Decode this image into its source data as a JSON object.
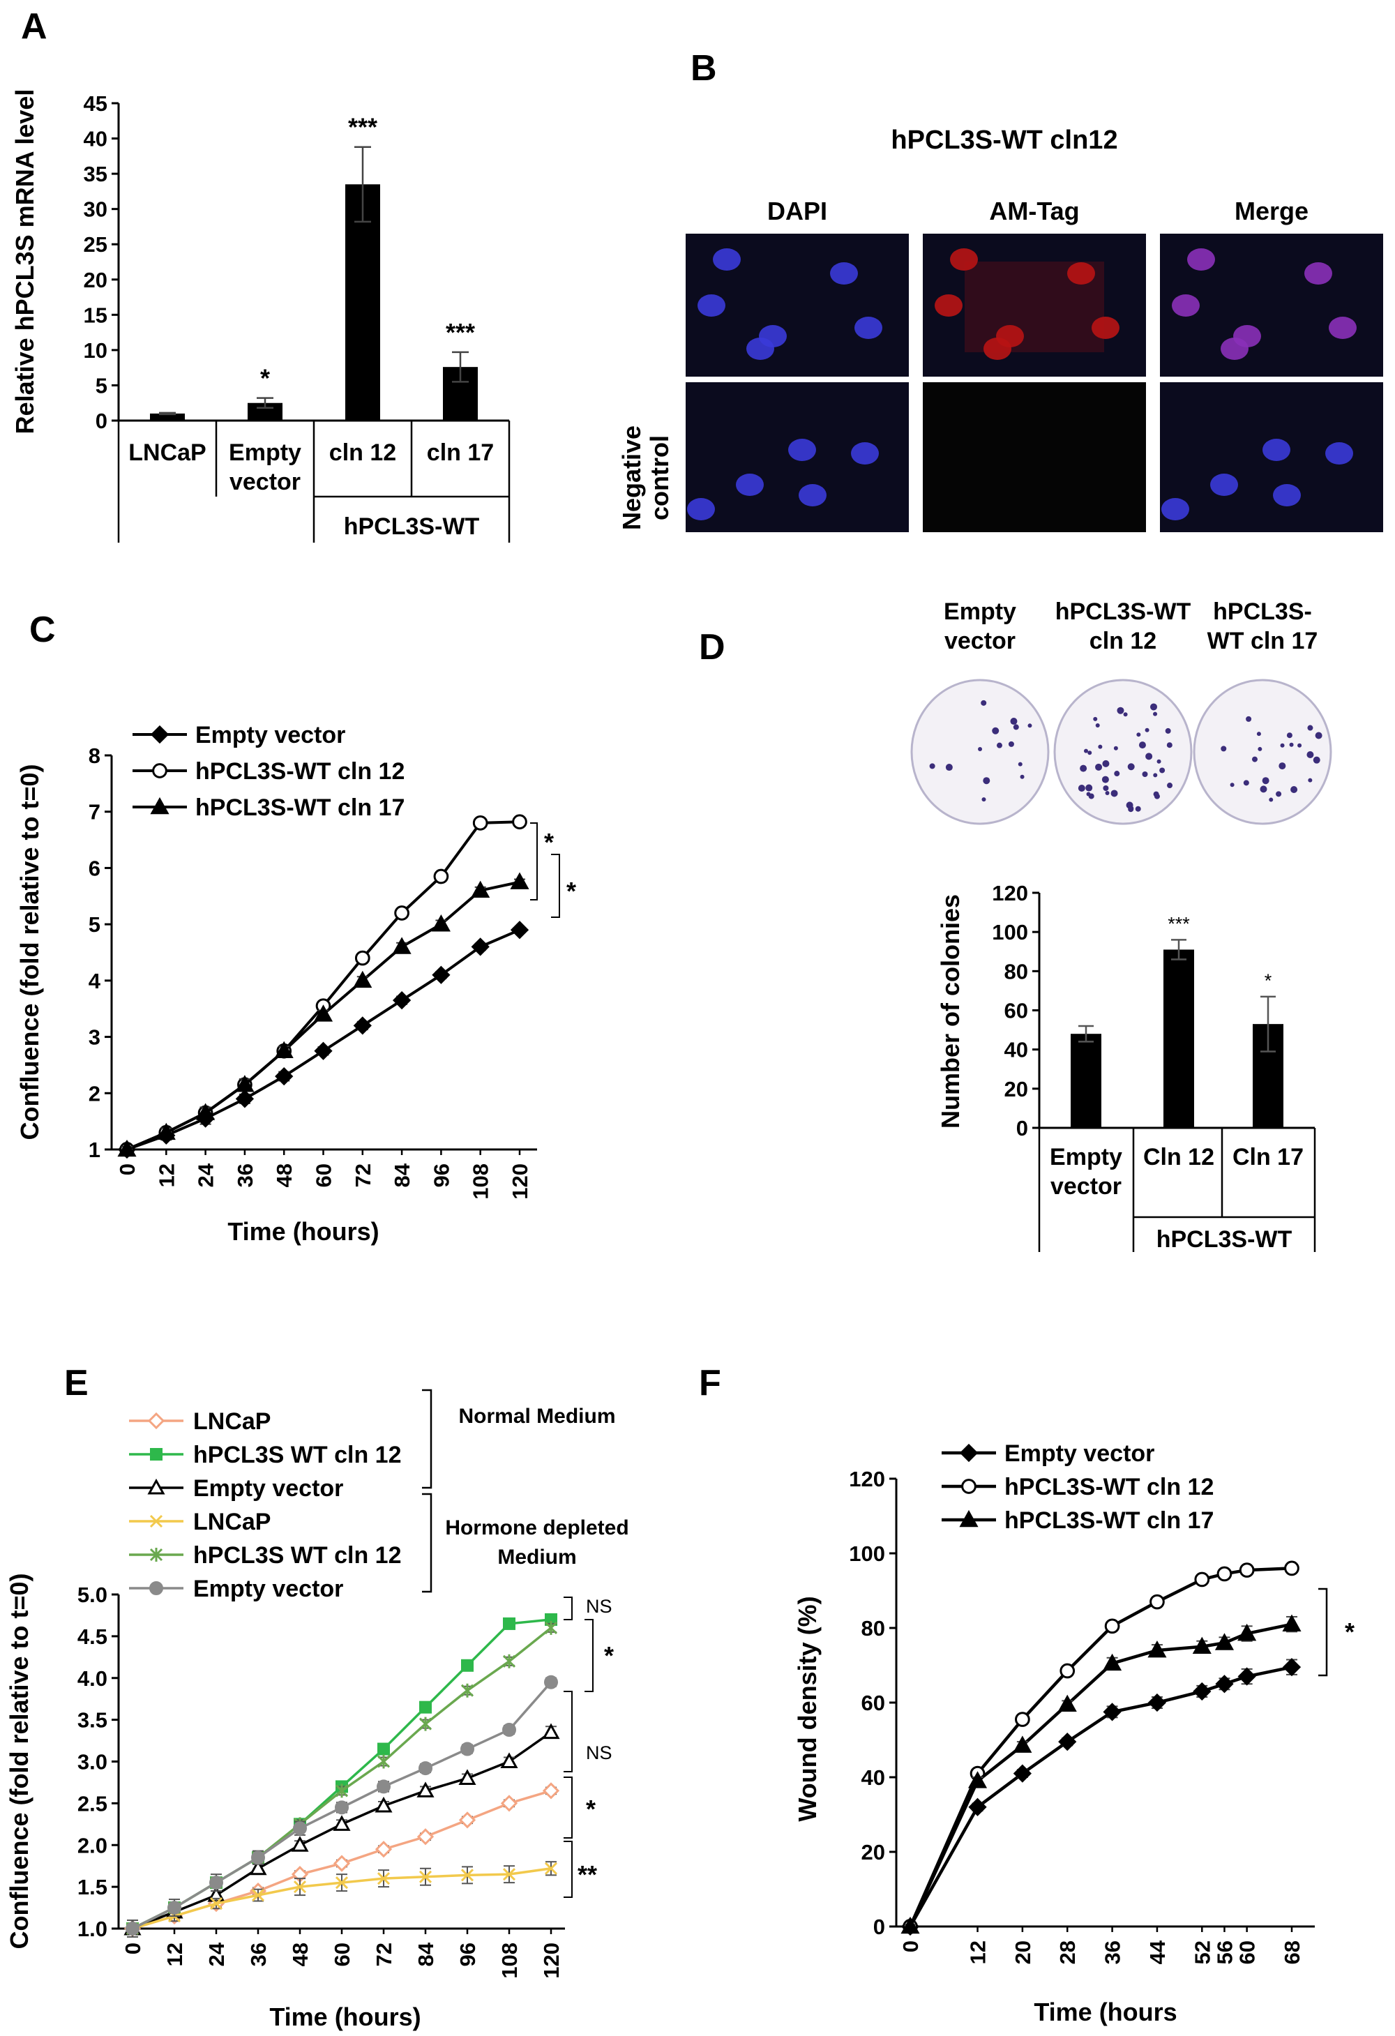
{
  "panels": {
    "A": "A",
    "B": "B",
    "C": "C",
    "D": "D",
    "E": "E",
    "F": "F"
  },
  "microscopy": {
    "title": "hPCL3S-WT cln12",
    "columns": [
      "DAPI",
      "AM-Tag",
      "Merge"
    ],
    "row_label_line1": "Negative",
    "row_label_line2": "control",
    "colors": {
      "nucleus": "#3a3ad8",
      "background": "#0b0b1e",
      "amtag": "#b81414",
      "merge_nucleus": "#8a30b8"
    }
  },
  "colony_images": {
    "labels": [
      [
        "Empty",
        "vector"
      ],
      [
        "hPCL3S-WT",
        "cln 12"
      ],
      [
        "hPCL3S-",
        "WT cln 17"
      ]
    ]
  },
  "chart_data": [
    {
      "id": "A",
      "type": "bar",
      "ylabel": "Relative hPCL3S mRNA level",
      "ylim": [
        0,
        45
      ],
      "yticks": [
        0,
        5,
        10,
        15,
        20,
        25,
        30,
        35,
        40,
        45
      ],
      "categories": [
        [
          "LNCaP"
        ],
        [
          "Empty",
          "vector"
        ],
        [
          "cln 12"
        ],
        [
          "cln 17"
        ]
      ],
      "values": [
        1.0,
        2.5,
        33.5,
        7.6
      ],
      "errors": [
        0.1,
        0.7,
        5.3,
        2.1
      ],
      "significance": [
        "",
        "*",
        "***",
        "***"
      ],
      "group_label": "hPCL3S-WT",
      "bar_color": "#000000"
    },
    {
      "id": "C",
      "type": "line",
      "xlabel": "Time (hours)",
      "ylabel": "Confluence (fold relative to t=0)",
      "x": [
        0,
        12,
        24,
        36,
        48,
        60,
        72,
        84,
        96,
        108,
        120
      ],
      "ylim": [
        1,
        8
      ],
      "yticks": [
        1,
        2,
        3,
        4,
        5,
        6,
        7,
        8
      ],
      "series": [
        {
          "name": "Empty vector",
          "marker": "diamond",
          "fill": "#000000",
          "values": [
            1.0,
            1.25,
            1.55,
            1.9,
            2.3,
            2.75,
            3.2,
            3.65,
            4.1,
            4.6,
            4.9
          ],
          "errors": [
            0.05,
            0.08,
            0.1,
            0.08,
            0.08,
            0.07,
            0.07,
            0.07,
            0.06,
            0.06,
            0.05
          ]
        },
        {
          "name": "hPCL3S-WT cln 12",
          "marker": "circle",
          "fill": "#ffffff",
          "values": [
            1.0,
            1.3,
            1.65,
            2.15,
            2.75,
            3.55,
            4.4,
            5.2,
            5.85,
            6.8,
            6.82
          ],
          "errors": [
            0.05,
            0.08,
            0.1,
            0.1,
            0.08,
            0.07,
            0.07,
            0.07,
            0.07,
            0.05,
            0.05
          ]
        },
        {
          "name": "hPCL3S-WT cln 17",
          "marker": "triangle",
          "fill": "#000000",
          "values": [
            1.0,
            1.3,
            1.65,
            2.15,
            2.75,
            3.4,
            4.0,
            4.6,
            5.0,
            5.6,
            5.75
          ],
          "errors": [
            0.05,
            0.08,
            0.1,
            0.1,
            0.08,
            0.07,
            0.07,
            0.07,
            0.07,
            0.06,
            0.05
          ]
        }
      ],
      "significance": [
        "*",
        "*"
      ]
    },
    {
      "id": "D",
      "type": "bar",
      "ylabel": "Number of colonies",
      "ylim": [
        0,
        120
      ],
      "yticks": [
        0,
        20,
        40,
        60,
        80,
        100,
        120
      ],
      "categories": [
        [
          "Empty",
          "vector"
        ],
        [
          "Cln 12"
        ],
        [
          "Cln 17"
        ]
      ],
      "values": [
        48,
        91,
        53
      ],
      "errors": [
        4,
        5,
        14
      ],
      "significance": [
        "",
        "***",
        "*"
      ],
      "group_label": "hPCL3S-WT",
      "bar_color": "#000000"
    },
    {
      "id": "E",
      "type": "line",
      "xlabel": "Time (hours)",
      "ylabel": "Confluence (fold relative to t=0)",
      "x": [
        0,
        12,
        24,
        36,
        48,
        60,
        72,
        84,
        96,
        108,
        120
      ],
      "ylim": [
        1.0,
        5.0
      ],
      "yticks": [
        "1.0",
        "1.5",
        "2.0",
        "2.5",
        "3.0",
        "3.5",
        "4.0",
        "4.5",
        "5.0"
      ],
      "groups": [
        "Normal Medium",
        "Hormone depleted",
        "Medium"
      ],
      "series": [
        {
          "name": "LNCaP",
          "marker": "diamond-open",
          "color": "#f4a582",
          "values": [
            1.0,
            1.15,
            1.3,
            1.45,
            1.65,
            1.78,
            1.95,
            2.1,
            2.3,
            2.5,
            2.65
          ],
          "errors": [
            0.05,
            0.04,
            0.04,
            0.04,
            0.04,
            0.04,
            0.04,
            0.04,
            0.04,
            0.04,
            0.04
          ]
        },
        {
          "name": "hPCL3S WT cln 12",
          "marker": "square",
          "color": "#2eb84b",
          "values": [
            1.0,
            1.25,
            1.55,
            1.85,
            2.25,
            2.7,
            3.15,
            3.65,
            4.15,
            4.65,
            4.7
          ],
          "errors": [
            0.05,
            0.05,
            0.05,
            0.05,
            0.05,
            0.04,
            0.04,
            0.04,
            0.04,
            0.03,
            0.03
          ]
        },
        {
          "name": "Empty vector",
          "marker": "triangle-open",
          "color": "#000000",
          "values": [
            1.0,
            1.2,
            1.4,
            1.72,
            2.0,
            2.25,
            2.47,
            2.65,
            2.8,
            3.0,
            3.35
          ],
          "errors": [
            0.05,
            0.06,
            0.05,
            0.05,
            0.05,
            0.05,
            0.05,
            0.05,
            0.05,
            0.05,
            0.07
          ]
        },
        {
          "name": "LNCaP",
          "marker": "x",
          "color": "#f2c94c",
          "values": [
            1.0,
            1.15,
            1.3,
            1.4,
            1.5,
            1.55,
            1.6,
            1.62,
            1.64,
            1.65,
            1.72
          ],
          "errors": [
            0.05,
            0.06,
            0.06,
            0.07,
            0.1,
            0.1,
            0.1,
            0.1,
            0.1,
            0.1,
            0.08
          ]
        },
        {
          "name": "hPCL3S WT cln 12",
          "marker": "asterisk",
          "color": "#6aa84f",
          "values": [
            1.0,
            1.25,
            1.55,
            1.85,
            2.25,
            2.65,
            3.0,
            3.45,
            3.85,
            4.2,
            4.6
          ],
          "errors": [
            0.05,
            0.05,
            0.05,
            0.05,
            0.05,
            0.05,
            0.05,
            0.05,
            0.05,
            0.05,
            0.05
          ]
        },
        {
          "name": "Empty vector",
          "marker": "circle",
          "color": "#8a8a8a",
          "values": [
            1.0,
            1.25,
            1.55,
            1.85,
            2.2,
            2.45,
            2.7,
            2.92,
            3.15,
            3.38,
            3.95
          ],
          "errors": [
            0.1,
            0.1,
            0.1,
            0.08,
            0.08,
            0.06,
            0.06,
            0.05,
            0.05,
            0.05,
            0.05
          ]
        }
      ],
      "significance": [
        "NS",
        "*",
        "NS",
        "*",
        "**"
      ]
    },
    {
      "id": "F",
      "type": "line",
      "xlabel": "Time (hours",
      "ylabel": "Wound density (%)",
      "x": [
        0,
        12,
        20,
        28,
        36,
        44,
        52,
        56,
        60,
        68
      ],
      "ylim": [
        0,
        120
      ],
      "yticks": [
        0,
        20,
        40,
        60,
        80,
        100,
        120
      ],
      "series": [
        {
          "name": "Empty vector",
          "marker": "diamond",
          "fill": "#000000",
          "values": [
            0,
            32,
            41,
            49.5,
            57.5,
            60,
            63,
            65,
            67,
            69.5
          ],
          "errors": [
            0.5,
            1,
            1,
            1,
            1.5,
            1.5,
            1.5,
            1.5,
            2,
            2
          ]
        },
        {
          "name": "hPCL3S-WT cln 12",
          "marker": "circle",
          "fill": "#ffffff",
          "values": [
            0,
            41,
            55.5,
            68.5,
            80.5,
            87,
            93,
            94.5,
            95.5,
            96
          ],
          "errors": [
            0.5,
            1,
            1,
            1,
            1,
            1,
            1,
            1,
            1,
            1
          ]
        },
        {
          "name": "hPCL3S-WT cln 17",
          "marker": "triangle",
          "fill": "#000000",
          "values": [
            0,
            39,
            48.5,
            59.5,
            70.5,
            74,
            75,
            76,
            78.5,
            81
          ],
          "errors": [
            0.5,
            1,
            1,
            1,
            1.5,
            1.5,
            1.5,
            1.5,
            2,
            2
          ]
        }
      ],
      "significance": [
        "*"
      ]
    }
  ]
}
